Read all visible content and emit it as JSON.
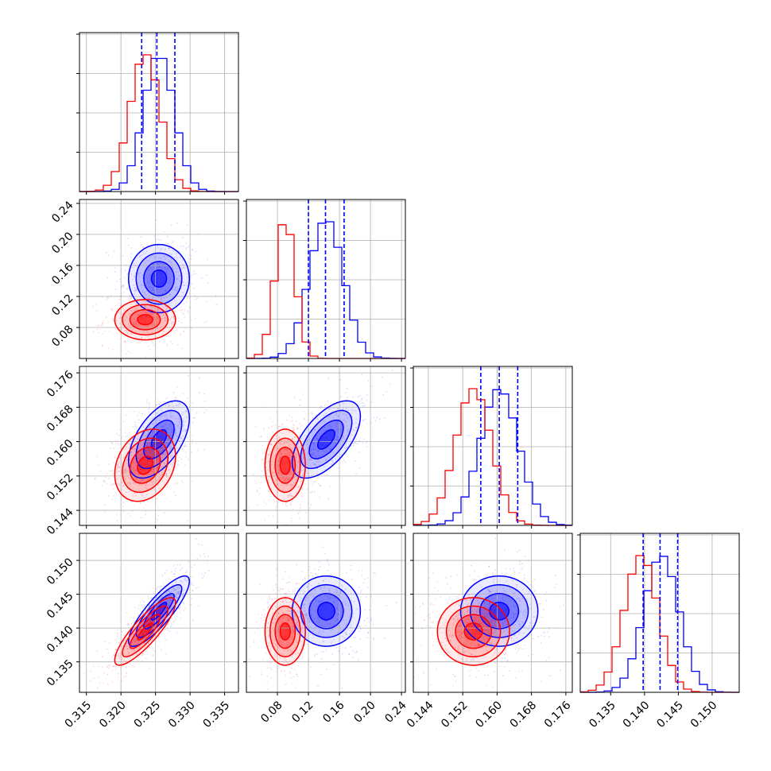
{
  "chart_data": {
    "type": "corner",
    "title": "",
    "colors": {
      "series_a": "#0000ff",
      "series_b": "#ff0000",
      "grid": "#b0b0b0",
      "axes": "#000000"
    },
    "params": [
      {
        "range": [
          0.314,
          0.337
        ],
        "ticks": [
          "0.315",
          "0.320",
          "0.325",
          "0.330",
          "0.335"
        ]
      },
      {
        "range": [
          0.04,
          0.245
        ],
        "ticks": [
          "0.08",
          "0.12",
          "0.16",
          "0.20",
          "0.24"
        ]
      },
      {
        "range": [
          0.1405,
          0.1775
        ],
        "ticks": [
          "0.144",
          "0.152",
          "0.160",
          "0.168",
          "0.176"
        ]
      },
      {
        "range": [
          0.1305,
          0.154
        ],
        "ticks": [
          "0.135",
          "0.140",
          "0.145",
          "0.150"
        ]
      }
    ],
    "series": [
      {
        "color": "#0000ff",
        "means": [
          0.3255,
          0.143,
          0.1605,
          0.1425
        ],
        "sigmas": [
          0.0022,
          0.022,
          0.0045,
          0.0026
        ],
        "quantiles": [
          [
            0.323,
            0.3252,
            0.3278
          ],
          [
            0.12,
            0.142,
            0.166
          ],
          [
            0.1562,
            0.1605,
            0.1648
          ],
          [
            0.1398,
            0.1423,
            0.1449
          ]
        ],
        "correlations": [
          [
            0,
            1,
            0.0
          ],
          [
            0,
            2,
            0.55
          ],
          [
            0,
            3,
            0.85
          ],
          [
            1,
            2,
            0.6
          ],
          [
            1,
            3,
            0.0
          ],
          [
            2,
            3,
            0.0
          ]
        ]
      },
      {
        "color": "#ff0000",
        "means": [
          0.3235,
          0.09,
          0.1545,
          0.1395
        ],
        "sigmas": [
          0.0022,
          0.013,
          0.0042,
          0.0025
        ],
        "quantiles": [],
        "correlations": [
          [
            0,
            1,
            0.0
          ],
          [
            0,
            2,
            0.25
          ],
          [
            0,
            3,
            0.85
          ],
          [
            1,
            2,
            0.0
          ],
          [
            1,
            3,
            0.0
          ],
          [
            2,
            3,
            0.0
          ]
        ]
      }
    ],
    "contour_levels_sigma": [
      0.5,
      1.0,
      1.5,
      2.0
    ],
    "grid": true
  }
}
